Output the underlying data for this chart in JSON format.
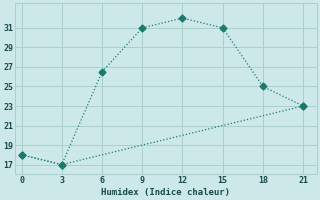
{
  "xlabel": "Humidex (Indice chaleur)",
  "ylabel": "",
  "line1_x": [
    0,
    3,
    6,
    9,
    12,
    15,
    18,
    21
  ],
  "line1_y": [
    18,
    17,
    26.5,
    31,
    32,
    31,
    25,
    23
  ],
  "line2_x": [
    0,
    3,
    21
  ],
  "line2_y": [
    18,
    17,
    23
  ],
  "line_color": "#1a7a6e",
  "bg_color": "#cce8e8",
  "xlim": [
    -0.5,
    22
  ],
  "ylim": [
    16.0,
    33.5
  ],
  "xticks": [
    0,
    3,
    6,
    9,
    12,
    15,
    18,
    21
  ],
  "yticks": [
    17,
    19,
    21,
    23,
    25,
    27,
    29,
    31
  ],
  "grid_color": "#aad0cc",
  "markersize": 3.5,
  "linewidth": 0.9
}
